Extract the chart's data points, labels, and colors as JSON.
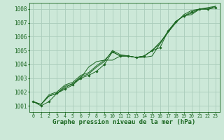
{
  "background_color": "#cce8d8",
  "grid_color": "#aaccbb",
  "line_color": "#1a6620",
  "xlabel": "Graphe pression niveau de la mer (hPa)",
  "xlabel_fontsize": 6.5,
  "ytick_fontsize": 5.5,
  "xtick_fontsize": 4.8,
  "yticks": [
    1001,
    1002,
    1003,
    1004,
    1005,
    1006,
    1007,
    1008
  ],
  "xticks": [
    0,
    1,
    2,
    3,
    4,
    5,
    6,
    7,
    8,
    9,
    10,
    11,
    12,
    13,
    14,
    15,
    16,
    17,
    18,
    19,
    20,
    21,
    22,
    23
  ],
  "xlim": [
    -0.5,
    23.5
  ],
  "ylim": [
    1000.55,
    1008.45
  ],
  "series": [
    [
      1001.3,
      1001.0,
      1001.3,
      1001.9,
      1002.2,
      1002.5,
      1003.0,
      1003.2,
      1003.5,
      1004.0,
      1004.9,
      1004.6,
      1004.6,
      1004.5,
      1004.6,
      1005.0,
      1005.2,
      1006.4,
      1007.1,
      1007.5,
      1007.8,
      1008.0,
      1008.0,
      1008.1
    ],
    [
      1001.3,
      1001.1,
      1001.7,
      1001.9,
      1002.3,
      1002.6,
      1003.1,
      1003.3,
      1003.8,
      1004.2,
      1005.0,
      1004.7,
      1004.6,
      1004.5,
      1004.6,
      1005.0,
      1005.6,
      1006.3,
      1007.0,
      1007.6,
      1007.9,
      1008.0,
      1008.1,
      1008.2
    ],
    [
      1001.3,
      1001.1,
      1001.8,
      1002.0,
      1002.5,
      1002.7,
      1003.2,
      1003.4,
      1003.9,
      1004.3,
      1004.9,
      1004.6,
      1004.6,
      1004.5,
      1004.5,
      1004.6,
      1005.5,
      1006.4,
      1007.1,
      1007.5,
      1007.6,
      1008.0,
      1008.0,
      1008.2
    ],
    [
      1001.3,
      1001.1,
      1001.7,
      1001.9,
      1002.4,
      1002.6,
      1003.0,
      1003.8,
      1004.2,
      1004.3,
      1004.3,
      1004.6,
      1004.6,
      1004.5,
      1004.6,
      1005.0,
      1005.5,
      1006.3,
      1007.1,
      1007.5,
      1007.7,
      1008.0,
      1008.0,
      1008.1
    ]
  ],
  "marker_symbol": "D",
  "marker_size": 1.8,
  "linewidth": 0.7
}
